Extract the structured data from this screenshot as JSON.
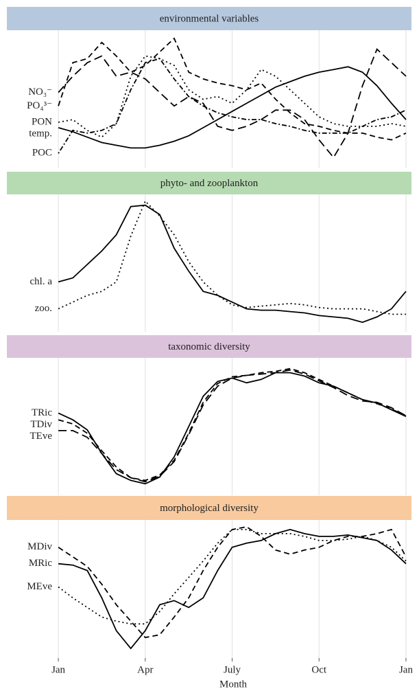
{
  "chart_data": {
    "type": "line",
    "x_label": "Month",
    "xlim": [
      -0.12,
      12.19
    ],
    "xticks": [
      {
        "value": 0,
        "label": "Jan"
      },
      {
        "value": 3,
        "label": "Apr"
      },
      {
        "value": 6,
        "label": "July"
      },
      {
        "value": 9,
        "label": "Oct"
      },
      {
        "value": 12,
        "label": "Jan"
      }
    ],
    "grid": true,
    "ylim": [
      0,
      100
    ],
    "x": [
      0,
      0.5,
      1,
      1.5,
      2,
      2.5,
      3,
      3.5,
      4,
      4.5,
      5,
      5.5,
      6,
      6.5,
      7,
      7.5,
      8,
      8.5,
      9,
      9.5,
      10,
      10.5,
      11,
      11.5,
      12
    ],
    "panels": [
      {
        "title": "environmental variables",
        "strip_color": "#b6c8de",
        "series": [
          {
            "name": "NO₃⁻",
            "color": "#000000",
            "dash": "longdash",
            "values": [
              55,
              67,
              77,
              82,
              67,
              70,
              65,
              55,
              45,
              52,
              47,
              30,
              27,
              30,
              35,
              42,
              42,
              35,
              20,
              7,
              25,
              60,
              87,
              77,
              67
            ]
          },
          {
            "name": "PO₄³⁻",
            "color": "#000000",
            "dash": "dashed",
            "values": [
              45,
              77,
              80,
              92,
              82,
              70,
              75,
              85,
              95,
              70,
              65,
              62,
              60,
              57,
              62,
              50,
              40,
              32,
              30,
              27,
              25,
              25,
              22,
              20,
              25
            ]
          },
          {
            "name": "PON",
            "color": "#000000",
            "dash": "dotted",
            "values": [
              33,
              35,
              27,
              22,
              32,
              67,
              82,
              80,
              75,
              57,
              50,
              52,
              47,
              57,
              72,
              67,
              57,
              47,
              37,
              32,
              30,
              30,
              30,
              32,
              30
            ]
          },
          {
            "name": "temp.",
            "color": "#000000",
            "dash": "solid",
            "values": [
              29,
              26,
              22,
              18,
              16,
              14,
              14,
              16,
              19,
              23,
              29,
              35,
              41,
              47,
              53,
              59,
              63,
              67,
              70,
              72,
              74,
              70,
              60,
              47,
              35
            ]
          },
          {
            "name": "POC",
            "color": "#000000",
            "dash": "dotdash",
            "values": [
              10,
              27,
              25,
              27,
              32,
              57,
              77,
              80,
              65,
              52,
              45,
              40,
              37,
              35,
              35,
              32,
              30,
              27,
              25,
              25,
              25,
              30,
              35,
              37,
              42
            ]
          }
        ]
      },
      {
        "title": "phyto- and zooplankton",
        "strip_color": "#b6dbb2",
        "series": [
          {
            "name": "chl. a",
            "color": "#000000",
            "dash": "solid",
            "values": [
              36,
              39,
              49,
              59,
              71,
              92,
              93,
              86,
              61,
              44,
              29,
              26,
              21,
              16,
              15,
              15,
              14,
              13,
              11,
              10,
              9,
              6,
              10,
              16,
              29
            ]
          },
          {
            "name": "zoo.",
            "color": "#000000",
            "dash": "dotted",
            "values": [
              16,
              21,
              26,
              29,
              36,
              70,
              96,
              85,
              71,
              51,
              36,
              26,
              19,
              17,
              18,
              19,
              20,
              19,
              17,
              16,
              16,
              16,
              14,
              12,
              12
            ]
          }
        ]
      },
      {
        "title": "taxonomic diversity",
        "strip_color": "#dcc3dc",
        "series": [
          {
            "name": "TRic",
            "color": "#000000",
            "dash": "solid",
            "values": [
              60,
              55,
              47.5,
              30,
              15,
              10,
              7.5,
              12.5,
              27.5,
              50,
              72.5,
              83.5,
              86,
              82.5,
              85,
              90,
              90,
              87.5,
              82.5,
              80,
              75,
              70,
              67.5,
              62.5,
              57.5
            ]
          },
          {
            "name": "TDiv",
            "color": "#000000",
            "dash": "dashed",
            "values": [
              55,
              52,
              45,
              32,
              20,
              12,
              10,
              14,
              25,
              45,
              68,
              82,
              87,
              88,
              90,
              91,
              93,
              90,
              85,
              80,
              75,
              70,
              67,
              63,
              58
            ]
          },
          {
            "name": "TEve",
            "color": "#000000",
            "dash": "longdash",
            "values": [
              47,
              47,
              42,
              30,
              18,
              12,
              9,
              13,
              24,
              44,
              66,
              80,
              86,
              88,
              89,
              90,
              92,
              89,
              84,
              79,
              73,
              69,
              68,
              64,
              58
            ]
          }
        ]
      },
      {
        "title": "morphological diversity",
        "strip_color": "#f8ca9e",
        "series": [
          {
            "name": "MDiv",
            "color": "#000000",
            "dash": "dashed",
            "values": [
              81,
              74,
              67,
              54,
              39,
              27,
              15,
              17,
              30,
              44,
              64,
              81,
              94,
              96,
              89,
              79,
              76,
              79,
              81,
              86,
              89,
              89,
              91,
              94,
              74
            ]
          },
          {
            "name": "MRic",
            "color": "#000000",
            "dash": "solid",
            "values": [
              69,
              68,
              64,
              44,
              20,
              7,
              20,
              39,
              42,
              37,
              44,
              64,
              81,
              84,
              86,
              91,
              94,
              91,
              89,
              89,
              90,
              88,
              86,
              79,
              69
            ]
          },
          {
            "name": "MEve",
            "color": "#000000",
            "dash": "dotted",
            "values": [
              52,
              44,
              37,
              30,
              27,
              25,
              25,
              34,
              47,
              59,
              71,
              84,
              94,
              94,
              91,
              91,
              91,
              89,
              86,
              86,
              87,
              89,
              86,
              81,
              71
            ]
          }
        ]
      }
    ]
  }
}
